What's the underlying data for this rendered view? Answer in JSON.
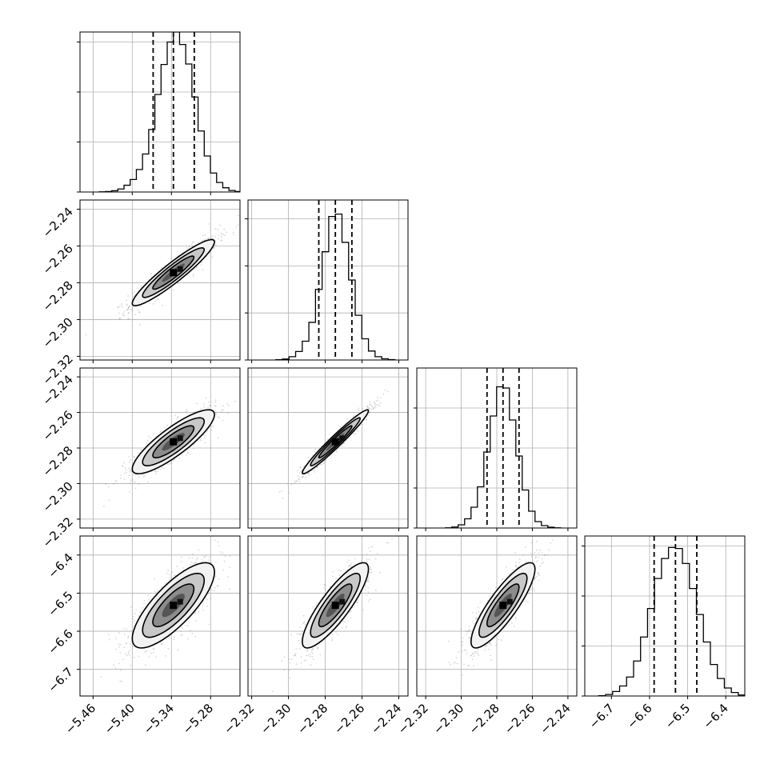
{
  "chart_data": {
    "type": "corner",
    "title": "",
    "grid": true,
    "parameters": [
      {
        "index": 0,
        "range": [
          -5.48,
          -5.235
        ],
        "ticks": [
          -5.46,
          -5.4,
          -5.34,
          -5.28
        ],
        "tick_labels": [
          "−5.46",
          "−5.40",
          "−5.34",
          "−5.28"
        ],
        "quantiles": [
          -5.368,
          -5.337,
          -5.305
        ],
        "hist_ylim": [
          0,
          3200
        ],
        "hist_grid_y": [
          1000,
          2000,
          3000
        ],
        "hist": [
          3,
          10,
          25,
          60,
          135,
          250,
          450,
          760,
          1250,
          1950,
          2550,
          3000,
          3200,
          2950,
          2560,
          1900,
          1220,
          720,
          380,
          190,
          85,
          30,
          10,
          2
        ]
      },
      {
        "index": 1,
        "range": [
          -2.322,
          -2.235
        ],
        "ticks": [
          -2.32,
          -2.3,
          -2.28,
          -2.26,
          -2.24
        ],
        "tick_labels": [
          "−2.32",
          "−2.30",
          "−2.28",
          "−2.26",
          "−2.24"
        ],
        "quantiles": [
          -2.2835,
          -2.2745,
          -2.2655
        ],
        "hist_ylim": [
          0,
          3400
        ],
        "hist_grid_y": [
          1000,
          2000,
          3000
        ],
        "hist": [
          5,
          20,
          70,
          180,
          400,
          800,
          1500,
          2300,
          3050,
          3100,
          2500,
          1700,
          950,
          450,
          190,
          70,
          25,
          8
        ]
      },
      {
        "index": 2,
        "range": [
          -2.325,
          -2.235
        ],
        "ticks": [
          -2.32,
          -2.3,
          -2.28,
          -2.26,
          -2.24
        ],
        "tick_labels": [
          "−2.32",
          "−2.30",
          "−2.28",
          "−2.26",
          "−2.24"
        ],
        "quantiles": [
          -2.2855,
          -2.2765,
          -2.2675
        ],
        "hist_ylim": [
          0,
          4000
        ],
        "hist_grid_y": [
          1000,
          2000,
          3000
        ],
        "hist": [
          5,
          25,
          80,
          230,
          520,
          1030,
          1900,
          2800,
          3530,
          3500,
          2700,
          1800,
          950,
          420,
          160,
          60,
          20,
          5
        ]
      },
      {
        "index": 3,
        "range": [
          -6.77,
          -6.35
        ],
        "ticks": [
          -6.7,
          -6.6,
          -6.5,
          -6.4
        ],
        "tick_labels": [
          "−6.7",
          "−6.6",
          "−6.5",
          "−6.4"
        ],
        "quantiles": [
          -6.588,
          -6.532,
          -6.476
        ],
        "hist_ylim": [
          0,
          3200
        ],
        "hist_grid_y": [
          1000,
          2000,
          3000
        ],
        "hist": [
          5,
          30,
          90,
          200,
          380,
          700,
          1180,
          1750,
          2350,
          2750,
          2970,
          2950,
          2650,
          2150,
          1630,
          1080,
          630,
          350,
          160,
          70,
          20,
          5
        ]
      }
    ],
    "correlations": {
      "1_0": 0.93,
      "2_0": 0.85,
      "2_1": 0.97,
      "3_0": 0.78,
      "3_1": 0.85,
      "3_2": 0.85
    }
  }
}
